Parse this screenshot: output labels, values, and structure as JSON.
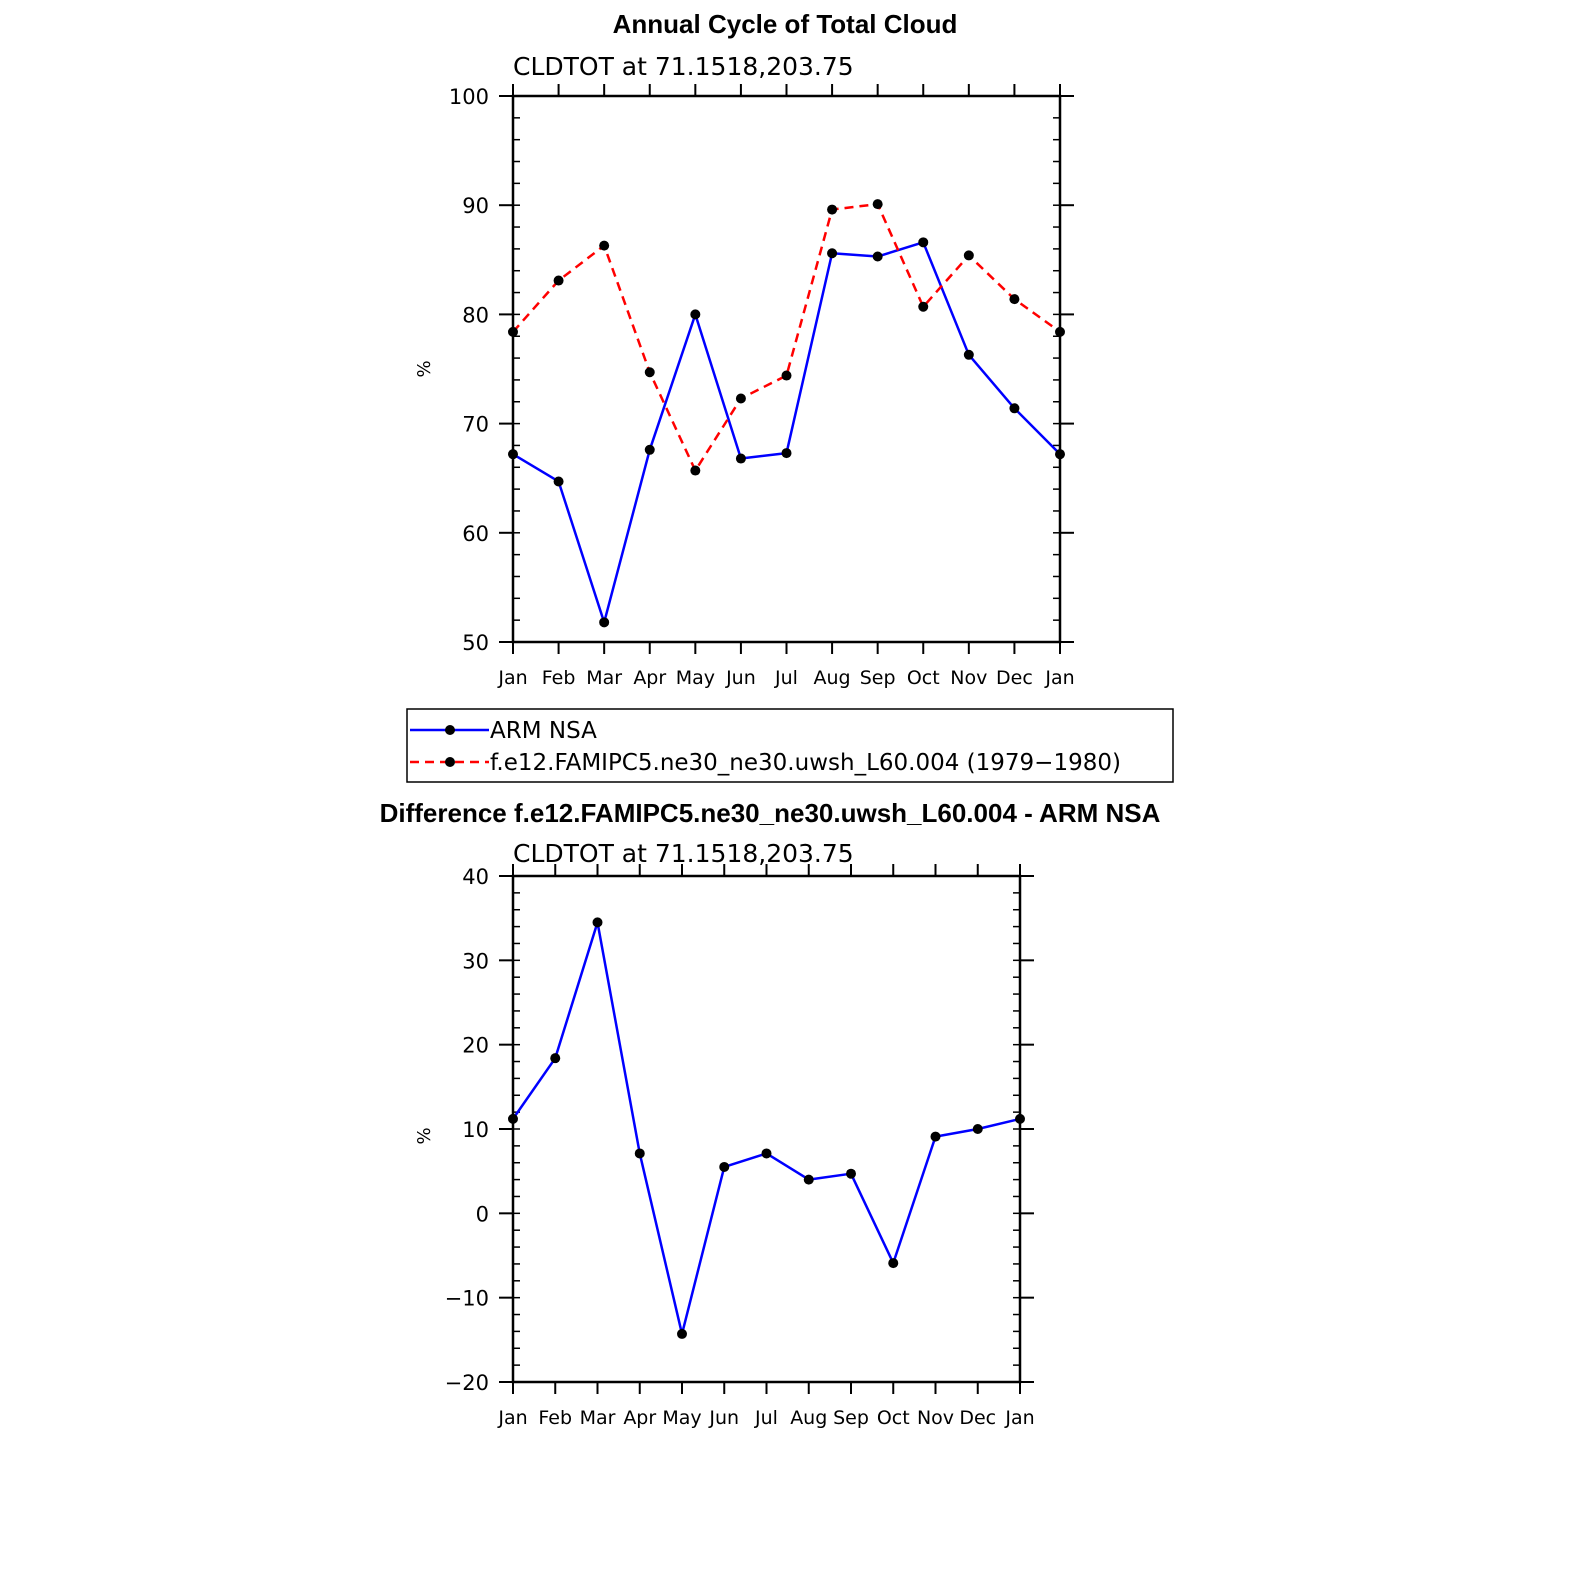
{
  "chart_data": [
    {
      "type": "line",
      "title": "Annual Cycle of Total Cloud",
      "subtitle": "CLDTOT at 71.1518,203.75",
      "xlabel": "",
      "ylabel": "%",
      "ylim": [
        50,
        100
      ],
      "yticks": [
        50,
        60,
        70,
        80,
        90,
        100
      ],
      "categories": [
        "Jan",
        "Feb",
        "Mar",
        "Apr",
        "May",
        "Jun",
        "Jul",
        "Aug",
        "Sep",
        "Oct",
        "Nov",
        "Dec",
        "Jan"
      ],
      "series": [
        {
          "name": "ARM NSA",
          "color": "#0000ff",
          "dash": "solid",
          "values": [
            67.2,
            64.7,
            51.8,
            67.6,
            80.0,
            66.8,
            67.3,
            85.6,
            85.3,
            86.6,
            76.3,
            71.4,
            67.2
          ]
        },
        {
          "name": "f.e12.FAMIPC5.ne30_ne30.uwsh_L60.004 (1979−1980)",
          "color": "#ff0000",
          "dash": "dashed",
          "values": [
            78.4,
            83.1,
            86.3,
            74.7,
            65.7,
            72.3,
            74.4,
            89.6,
            90.1,
            80.7,
            85.4,
            81.4,
            78.4
          ]
        }
      ],
      "legend": {
        "position": "bottom",
        "entries": [
          "ARM NSA",
          "f.e12.FAMIPC5.ne30_ne30.uwsh_L60.004 (1979−1980)"
        ]
      }
    },
    {
      "type": "line",
      "title": "Difference f.e12.FAMIPC5.ne30_ne30.uwsh_L60.004 - ARM NSA",
      "subtitle": "CLDTOT at 71.1518,203.75",
      "xlabel": "",
      "ylabel": "%",
      "ylim": [
        -20,
        40
      ],
      "yticks": [
        -20,
        -10,
        0,
        10,
        20,
        30,
        40
      ],
      "ytick_labels": [
        "−20",
        "−10",
        "0",
        "10",
        "20",
        "30",
        "40"
      ],
      "categories": [
        "Jan",
        "Feb",
        "Mar",
        "Apr",
        "May",
        "Jun",
        "Jul",
        "Aug",
        "Sep",
        "Oct",
        "Nov",
        "Dec",
        "Jan"
      ],
      "series": [
        {
          "name": "Difference",
          "color": "#0000ff",
          "dash": "solid",
          "values": [
            11.2,
            18.4,
            34.5,
            7.1,
            -14.3,
            5.5,
            7.1,
            4.0,
            4.7,
            -5.9,
            9.1,
            10.0,
            11.2
          ]
        }
      ]
    }
  ]
}
